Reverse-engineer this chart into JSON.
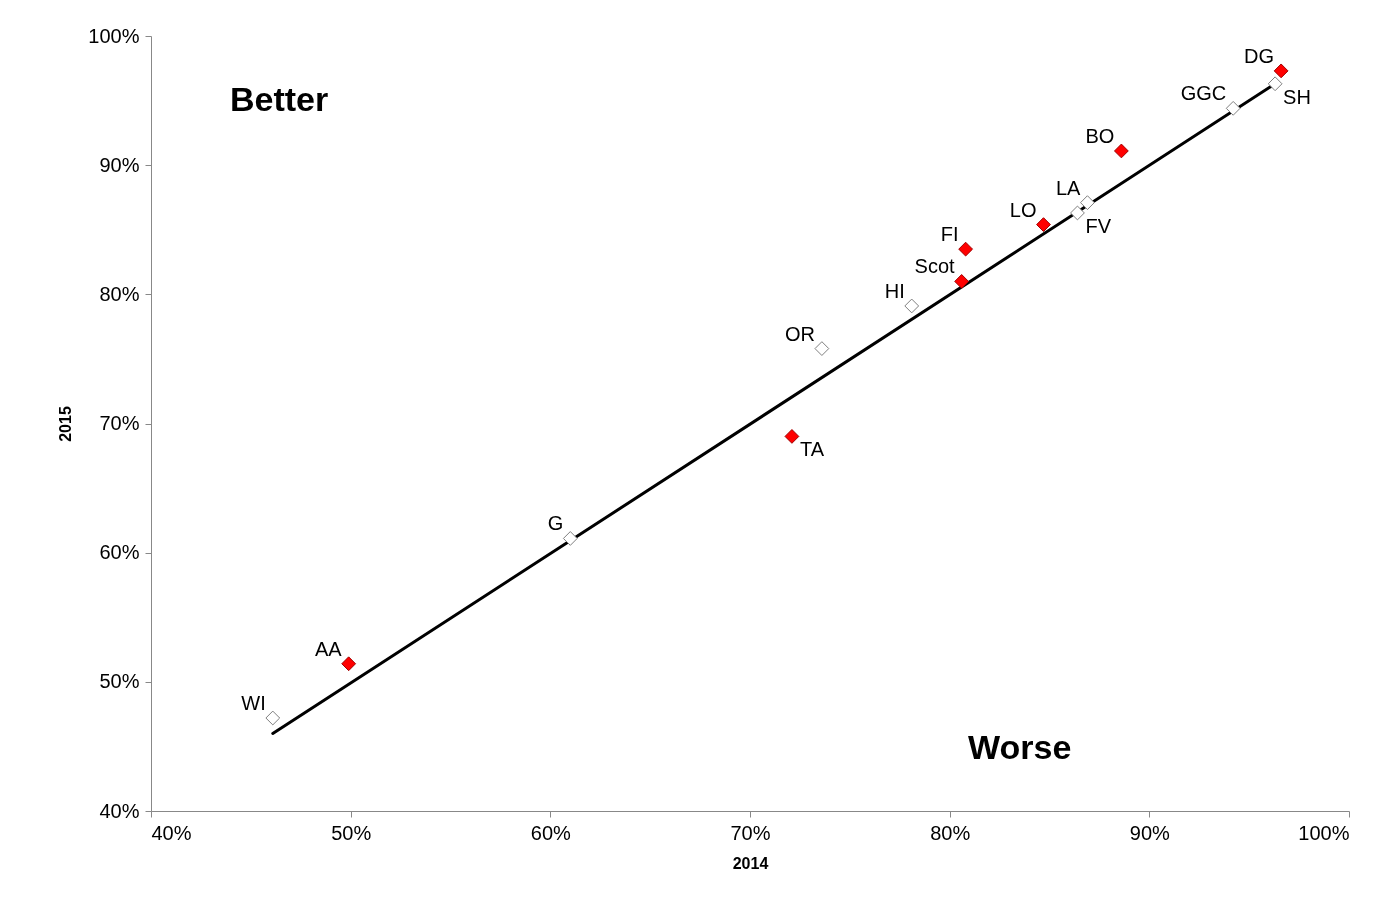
{
  "chart_data": {
    "type": "scatter",
    "xlabel": "2014",
    "ylabel": "2015",
    "grid": false,
    "xlim": [
      40,
      100
    ],
    "ylim": [
      40,
      100
    ],
    "xticks": [
      {
        "value": 40,
        "label": "40%"
      },
      {
        "value": 50,
        "label": "50%"
      },
      {
        "value": 60,
        "label": "60%"
      },
      {
        "value": 70,
        "label": "70%"
      },
      {
        "value": 80,
        "label": "80%"
      },
      {
        "value": 90,
        "label": "90%"
      },
      {
        "value": 100,
        "label": "100%"
      }
    ],
    "yticks": [
      {
        "value": 40,
        "label": "40%"
      },
      {
        "value": 50,
        "label": "50%"
      },
      {
        "value": 60,
        "label": "60%"
      },
      {
        "value": 70,
        "label": "70%"
      },
      {
        "value": 80,
        "label": "80%"
      },
      {
        "value": 90,
        "label": "90%"
      },
      {
        "value": 100,
        "label": "100%"
      }
    ],
    "series": [
      {
        "type": "line",
        "color": "#000000",
        "x": [
          46.1,
          96.3
        ],
        "values": [
          46.0,
          96.3
        ]
      },
      {
        "marker": "diamond",
        "color": "#ff0000",
        "x": [
          49.9,
          72.1,
          80.6,
          80.8,
          84.7,
          88.6,
          96.6
        ],
        "values": [
          51.4,
          69.0,
          81.0,
          83.5,
          85.4,
          91.1,
          97.3
        ]
      },
      {
        "marker": "diamond",
        "color": "#ffffff",
        "x": [
          46.1,
          61.0,
          73.6,
          78.1,
          86.4,
          86.9,
          94.2,
          96.3
        ],
        "values": [
          47.2,
          61.1,
          75.8,
          79.1,
          86.3,
          87.1,
          94.4,
          96.3
        ]
      }
    ],
    "annotations": [
      {
        "text": "AA",
        "x": 49.9,
        "y": 51.4
      },
      {
        "text": "TA",
        "x": 72.1,
        "y": 69.0
      },
      {
        "text": "Scot",
        "x": 80.6,
        "y": 81.0
      },
      {
        "text": "FI",
        "x": 80.8,
        "y": 83.5
      },
      {
        "text": "LO",
        "x": 84.7,
        "y": 85.4
      },
      {
        "text": "BO",
        "x": 88.6,
        "y": 91.1
      },
      {
        "text": "DG",
        "x": 96.6,
        "y": 97.3
      },
      {
        "text": "WI",
        "x": 46.1,
        "y": 47.2
      },
      {
        "text": "G",
        "x": 61.0,
        "y": 61.1
      },
      {
        "text": "OR",
        "x": 73.6,
        "y": 75.8
      },
      {
        "text": "HI",
        "x": 78.1,
        "y": 79.1
      },
      {
        "text": "FV",
        "x": 86.4,
        "y": 86.3
      },
      {
        "text": "LA",
        "x": 86.9,
        "y": 87.1
      },
      {
        "text": "GGC",
        "x": 94.2,
        "y": 94.4
      },
      {
        "text": "SH",
        "x": 96.3,
        "y": 96.3
      },
      "Better",
      "Worse"
    ]
  }
}
